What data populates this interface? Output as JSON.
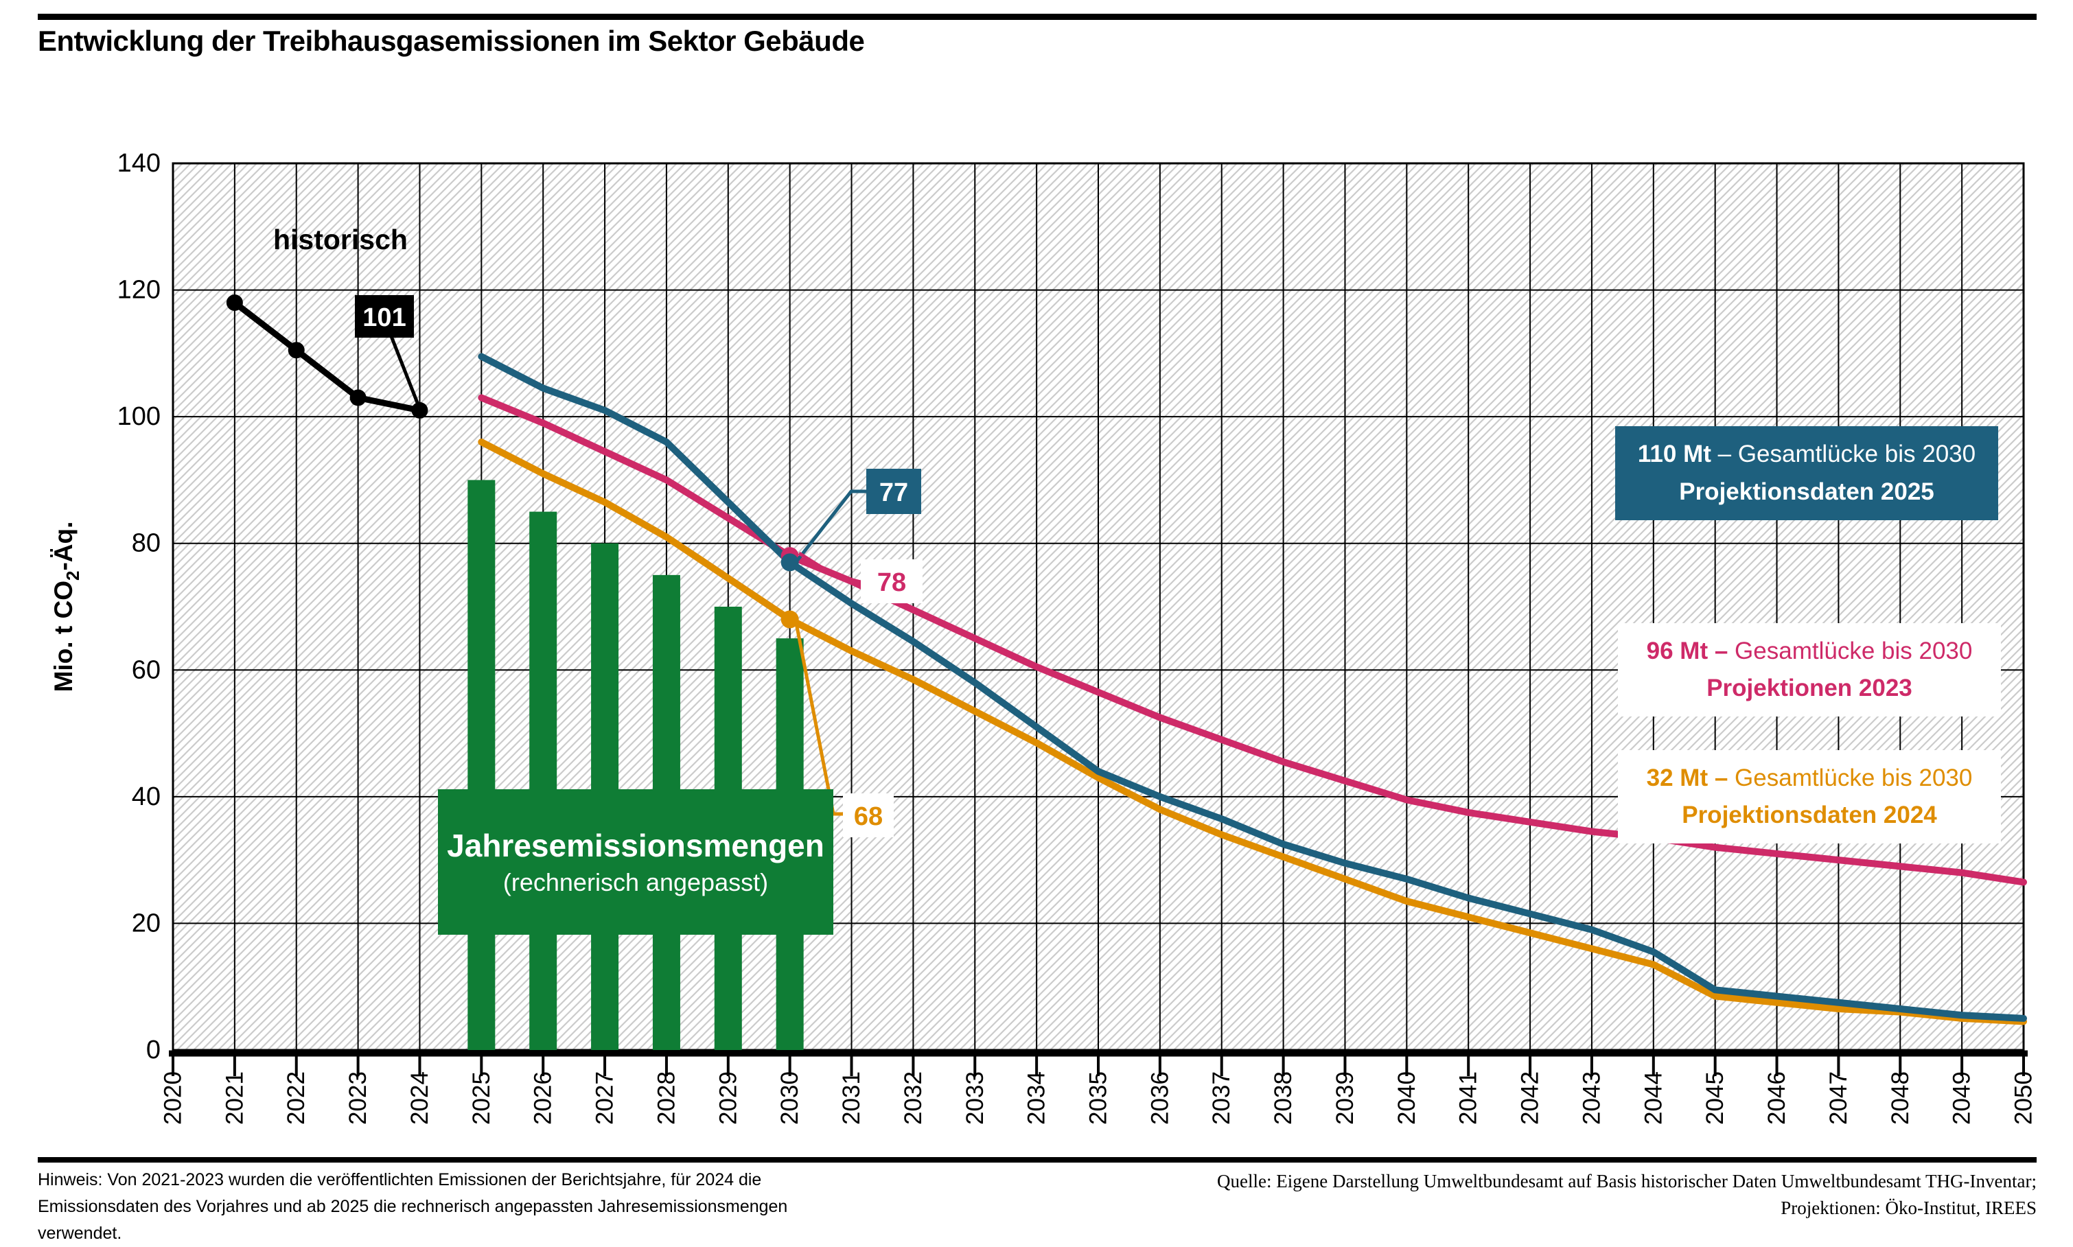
{
  "page": {
    "title": "Entwicklung der Treibhausgasemissionen im Sektor Gebäude",
    "footnote_lines": [
      "Hinweis: Von 2021-2023 wurden die veröffentlichten Emissionen der Berichtsjahre, für 2024 die",
      "Emissionsdaten des Vorjahres und ab 2025 die rechnerisch angepassten Jahresemissionsmengen",
      "verwendet."
    ],
    "source_lines": [
      "Quelle: Eigene Darstellung Umweltbundesamt auf Basis historischer Daten Umweltbundesamt THG-Inventar;",
      "Projektionen: Öko-Institut, IREES"
    ]
  },
  "y_axis": {
    "label_prefix": "Mio. t CO",
    "label_sub": "2",
    "label_suffix": "-Äq."
  },
  "labels": {
    "historical": "historisch",
    "bars_line1": "Jahresemissionsmengen",
    "bars_line2": "(rechnerisch angepasst)"
  },
  "legend": [
    {
      "bold": "110 Mt",
      "rest": "– Gesamtlücke bis 2030",
      "line2": "Projektionsdaten 2025",
      "fg": "#FFFFFF",
      "bg": "#1E607E"
    },
    {
      "bold": "96 Mt –",
      "rest": "Gesamtlücke bis 2030",
      "line2": "Projektionen 2023",
      "fg": "#CE2A68",
      "bg": "#FFFFFF"
    },
    {
      "bold": "32 Mt –",
      "rest": "Gesamtlücke bis 2030",
      "line2": "Projektionsdaten 2024",
      "fg": "#DF8D00",
      "bg": "#FFFFFF"
    }
  ],
  "chart_data": {
    "type": "line+bar",
    "title": "Entwicklung der Treibhausgasemissionen im Sektor Gebäude",
    "xlabel": "",
    "ylabel": "Mio. t CO₂-Äq.",
    "xlim": [
      2020,
      2050
    ],
    "ylim": [
      0,
      140
    ],
    "grid": true,
    "legend_position": "right",
    "colors": {
      "grid": "#000000",
      "hatch": "#CBCBCB",
      "axis": "#000000",
      "historical": "#000000",
      "bars": "#0F7D35",
      "proj2025": "#1E607E",
      "proj2023": "#CE2A68",
      "proj2024": "#DF8D00"
    },
    "y_ticks": [
      0,
      20,
      40,
      60,
      80,
      100,
      120,
      140
    ],
    "x_tick_labels": [
      "2020",
      "2021",
      "2022",
      "2023",
      "2024",
      "2025",
      "2026",
      "2027",
      "2028",
      "2029",
      "2030",
      "2031",
      "2032",
      "2033",
      "2034",
      "2035",
      "2036",
      "2037",
      "2038",
      "2039",
      "2040",
      "2041",
      "2042",
      "2043",
      "2044",
      "2045",
      "2046",
      "2047",
      "2048",
      "2049",
      "2050"
    ],
    "historical": {
      "name": "historisch",
      "color": "#000000",
      "x": [
        2021,
        2022,
        2023,
        2024
      ],
      "values": [
        118,
        110.5,
        103,
        101
      ]
    },
    "bars": {
      "name": "Jahresemissionsmengen (rechnerisch angepasst)",
      "color": "#0F7D35",
      "x": [
        2025,
        2026,
        2027,
        2028,
        2029,
        2030
      ],
      "values": [
        90,
        85,
        80,
        75,
        70,
        65
      ]
    },
    "series": [
      {
        "name": "Projektionsdaten 2025",
        "gap_label": "110 Mt – Gesamtlücke bis 2030",
        "color": "#1E607E",
        "x": [
          2025,
          2026,
          2027,
          2028,
          2029,
          2030,
          2031,
          2032,
          2033,
          2034,
          2035,
          2036,
          2037,
          2038,
          2039,
          2040,
          2041,
          2042,
          2043,
          2044,
          2045,
          2046,
          2047,
          2048,
          2049,
          2050
        ],
        "values": [
          109.5,
          104.5,
          101,
          96,
          86.5,
          77,
          70.5,
          64.5,
          58,
          51,
          44,
          40,
          36.5,
          32.5,
          29.5,
          27,
          24,
          21.5,
          19,
          15.5,
          9.5,
          8.5,
          7.5,
          6.5,
          5.5,
          5
        ]
      },
      {
        "name": "Projektionen 2023",
        "gap_label": "96 Mt – Gesamtlücke bis 2030",
        "color": "#CE2A68",
        "x": [
          2025,
          2026,
          2027,
          2028,
          2029,
          2030,
          2031,
          2032,
          2033,
          2034,
          2035,
          2036,
          2037,
          2038,
          2039,
          2040,
          2041,
          2042,
          2043,
          2044,
          2045,
          2046,
          2047,
          2048,
          2049,
          2050
        ],
        "values": [
          103,
          99,
          94.5,
          90,
          84,
          78,
          74,
          69.5,
          65,
          60.5,
          56.5,
          52.5,
          49,
          45.5,
          42.5,
          39.5,
          37.5,
          36,
          34.5,
          33.5,
          32,
          31,
          30,
          29,
          28,
          26.5
        ]
      },
      {
        "name": "Projektionsdaten 2024",
        "gap_label": "32 Mt – Gesamtlücke bis 2030",
        "color": "#DF8D00",
        "x": [
          2025,
          2026,
          2027,
          2028,
          2029,
          2030,
          2031,
          2032,
          2033,
          2034,
          2035,
          2036,
          2037,
          2038,
          2039,
          2040,
          2041,
          2042,
          2043,
          2044,
          2045,
          2046,
          2047,
          2048,
          2049,
          2050
        ],
        "values": [
          96,
          91,
          86.5,
          81,
          74.5,
          68,
          63,
          58.5,
          53.5,
          48.5,
          43,
          38,
          34,
          30.5,
          27,
          23.5,
          21,
          18.5,
          16,
          13.5,
          8.5,
          7.5,
          6.5,
          6,
          5,
          4.5
        ]
      }
    ],
    "annotations": [
      {
        "label": "101",
        "target": "historisch",
        "year": 2024,
        "value": 101
      },
      {
        "label": "77",
        "target": "Projektionsdaten 2025",
        "year": 2030,
        "value": 77
      },
      {
        "label": "78",
        "target": "Projektionen 2023",
        "year": 2030,
        "value": 78
      },
      {
        "label": "68",
        "target": "Projektionsdaten 2024",
        "year": 2030,
        "value": 68
      }
    ]
  }
}
